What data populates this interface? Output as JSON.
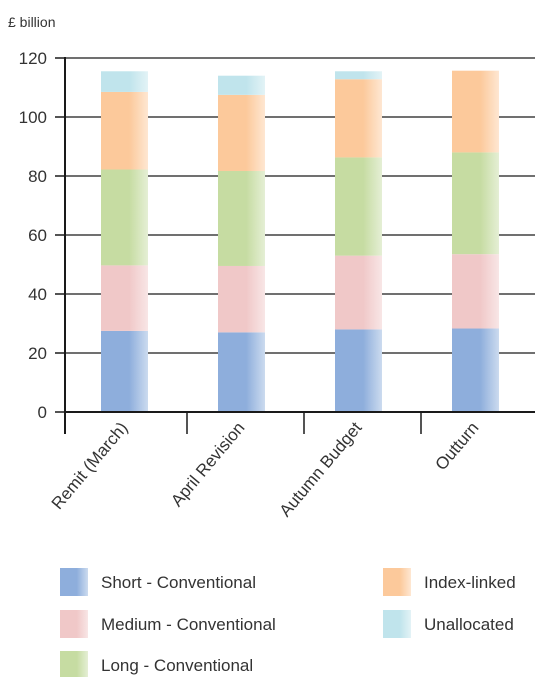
{
  "chart_data": {
    "type": "bar",
    "stacked": true,
    "y_unit_label": "£ billion",
    "categories": [
      "Remit (March)",
      "April Revision",
      "Autumn Budget",
      "Outturn"
    ],
    "series": [
      {
        "name": "Short - Conventional",
        "color": "#8eaedc",
        "values": [
          27.5,
          27,
          28,
          28.3
        ]
      },
      {
        "name": "Medium - Conventional",
        "color": "#f0c8c8",
        "values": [
          22.2,
          22.5,
          25,
          25.2
        ]
      },
      {
        "name": "Long - Conventional",
        "color": "#c6dca2",
        "values": [
          32.5,
          32.2,
          33.3,
          34.5
        ]
      },
      {
        "name": "Index-linked",
        "color": "#fcc99b",
        "values": [
          26.3,
          25.8,
          26.5,
          27.7
        ]
      },
      {
        "name": "Unallocated",
        "color": "#c0e4ec",
        "values": [
          7,
          6.5,
          2.7,
          0
        ]
      }
    ],
    "ylim": [
      0,
      120
    ],
    "yticks": [
      0,
      20,
      40,
      60,
      80,
      100,
      120
    ],
    "grid": true,
    "legend_position": "bottom"
  }
}
